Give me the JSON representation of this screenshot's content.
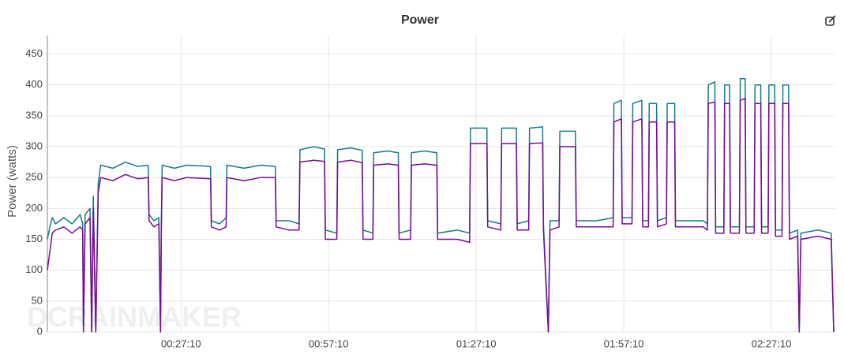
{
  "chart_data": {
    "type": "line",
    "title": "Power",
    "y_label": "Power (watts)",
    "watermark": "DCRAINMAKER",
    "grid": true,
    "xlim": [
      0,
      9600
    ],
    "ylim": [
      0,
      480
    ],
    "yticks": [
      0,
      50,
      100,
      150,
      200,
      250,
      300,
      350,
      400,
      450
    ],
    "xticks": [
      {
        "value": 1630,
        "label": "00:27:10"
      },
      {
        "value": 3430,
        "label": "00:57:10"
      },
      {
        "value": 5230,
        "label": "01:27:10"
      },
      {
        "value": 7030,
        "label": "01:57:10"
      },
      {
        "value": 8830,
        "label": "02:27:10"
      }
    ],
    "x": [
      0,
      30,
      60,
      100,
      200,
      300,
      400,
      430,
      440,
      460,
      520,
      540,
      560,
      590,
      620,
      650,
      800,
      950,
      1100,
      1230,
      1240,
      1300,
      1360,
      1380,
      1390,
      1400,
      1550,
      1700,
      1990,
      2000,
      2100,
      2180,
      2190,
      2400,
      2600,
      2780,
      2790,
      2950,
      3070,
      3080,
      3250,
      3380,
      3390,
      3530,
      3540,
      3700,
      3840,
      3850,
      3970,
      3980,
      4150,
      4280,
      4290,
      4430,
      4440,
      4600,
      4750,
      4760,
      5000,
      5150,
      5160,
      5360,
      5370,
      5530,
      5540,
      5720,
      5730,
      5870,
      5880,
      6040,
      6050,
      6110,
      6130,
      6240,
      6250,
      6440,
      6450,
      6700,
      6900,
      6910,
      7000,
      7010,
      7130,
      7140,
      7250,
      7260,
      7330,
      7340,
      7430,
      7440,
      7550,
      7560,
      7650,
      7660,
      8000,
      8050,
      8060,
      8140,
      8150,
      8250,
      8260,
      8320,
      8330,
      8440,
      8450,
      8510,
      8520,
      8620,
      8630,
      8700,
      8710,
      8790,
      8800,
      8870,
      8880,
      8960,
      8970,
      9040,
      9050,
      9150,
      9170,
      9190,
      9400,
      9560,
      9590
    ],
    "series": [
      {
        "color": "#17798c",
        "values": [
          150,
          170,
          185,
          175,
          185,
          175,
          190,
          175,
          0,
          190,
          200,
          0,
          220,
          0,
          240,
          270,
          265,
          275,
          268,
          270,
          190,
          180,
          185,
          0,
          180,
          270,
          265,
          270,
          268,
          180,
          175,
          185,
          270,
          265,
          270,
          268,
          180,
          180,
          175,
          295,
          300,
          296,
          165,
          160,
          295,
          298,
          294,
          165,
          160,
          290,
          293,
          290,
          160,
          165,
          290,
          293,
          290,
          160,
          165,
          160,
          330,
          330,
          180,
          175,
          330,
          330,
          175,
          180,
          330,
          332,
          175,
          0,
          180,
          180,
          325,
          325,
          180,
          180,
          185,
          370,
          375,
          185,
          185,
          370,
          375,
          180,
          180,
          370,
          370,
          180,
          185,
          370,
          370,
          180,
          180,
          175,
          400,
          405,
          170,
          170,
          400,
          400,
          170,
          170,
          410,
          410,
          170,
          170,
          400,
          400,
          170,
          170,
          400,
          400,
          165,
          165,
          400,
          400,
          160,
          165,
          0,
          160,
          165,
          160,
          0
        ]
      },
      {
        "color": "#7a0a96",
        "values": [
          100,
          130,
          160,
          165,
          170,
          160,
          170,
          165,
          0,
          175,
          185,
          0,
          200,
          0,
          225,
          250,
          245,
          255,
          248,
          250,
          180,
          170,
          175,
          0,
          170,
          250,
          245,
          250,
          248,
          170,
          165,
          170,
          250,
          245,
          250,
          250,
          170,
          165,
          165,
          275,
          278,
          276,
          150,
          150,
          275,
          278,
          274,
          150,
          150,
          270,
          272,
          270,
          150,
          150,
          270,
          272,
          270,
          150,
          150,
          145,
          305,
          305,
          170,
          165,
          305,
          305,
          165,
          165,
          305,
          306,
          165,
          0,
          165,
          170,
          300,
          300,
          170,
          170,
          170,
          340,
          345,
          175,
          175,
          340,
          345,
          170,
          170,
          340,
          340,
          170,
          175,
          340,
          340,
          170,
          170,
          165,
          370,
          372,
          160,
          160,
          370,
          370,
          160,
          160,
          375,
          378,
          160,
          160,
          370,
          370,
          160,
          160,
          370,
          370,
          155,
          155,
          370,
          370,
          150,
          155,
          0,
          150,
          155,
          150,
          0
        ]
      }
    ]
  }
}
